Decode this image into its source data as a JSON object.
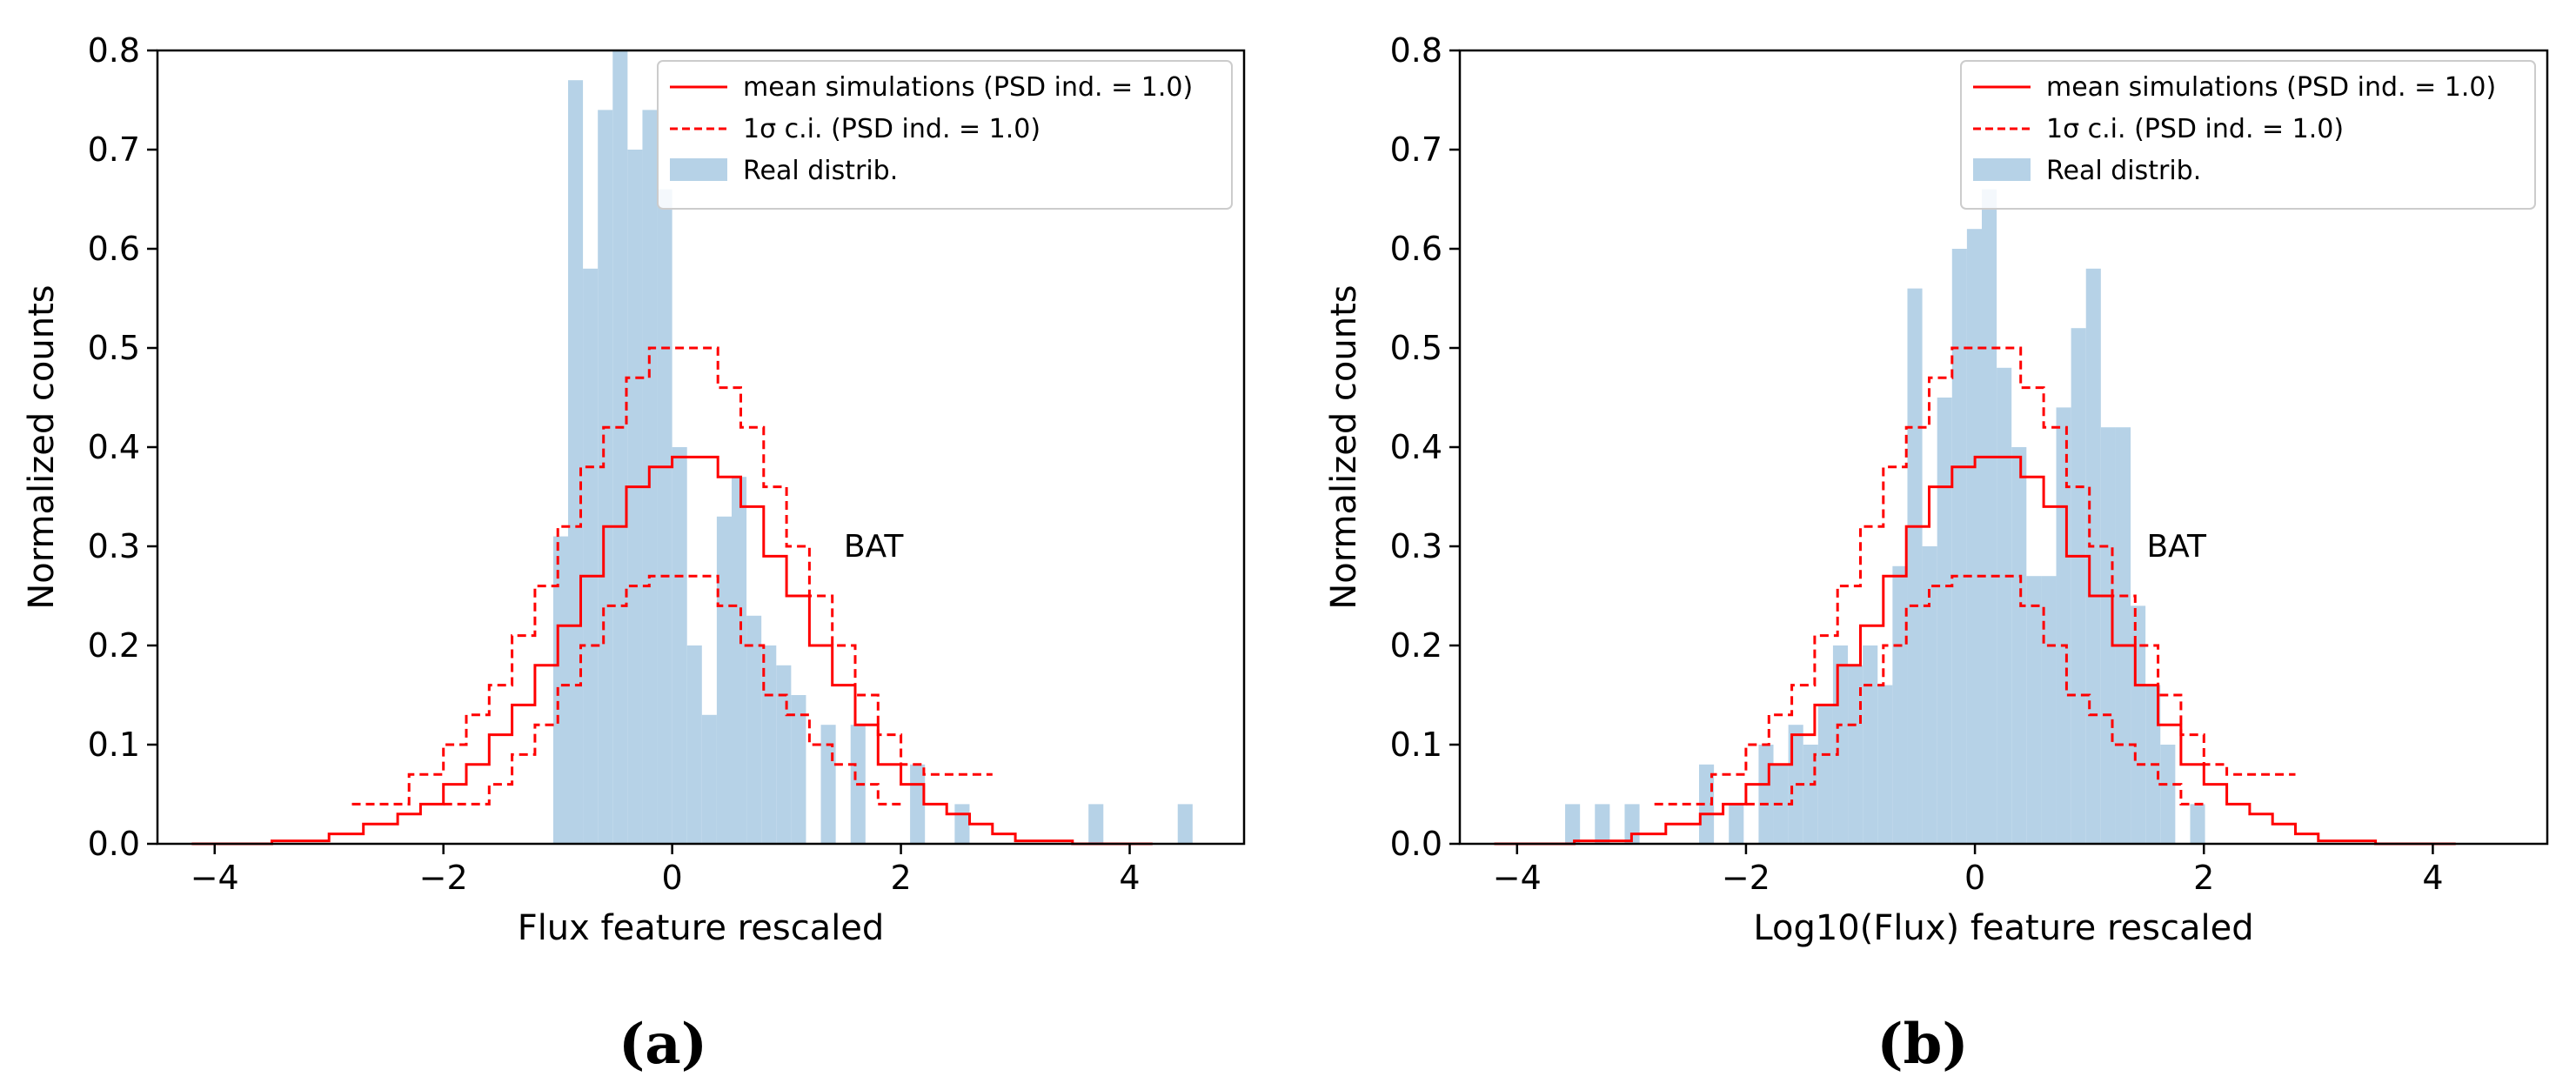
{
  "chart_data": [
    {
      "type": "bar",
      "panel_caption": "(a)",
      "title": "",
      "xlabel": "Flux feature rescaled",
      "ylabel": "Normalized counts",
      "annotation": "BAT",
      "xlim": [
        -4.5,
        5.0
      ],
      "ylim": [
        0.0,
        0.8
      ],
      "xticks": [
        -4,
        -2,
        0,
        2,
        4
      ],
      "xtick_labels": [
        "−4",
        "−2",
        "0",
        "2",
        "4"
      ],
      "yticks": [
        0.0,
        0.1,
        0.2,
        0.3,
        0.4,
        0.5,
        0.6,
        0.7,
        0.8
      ],
      "ytick_labels": [
        "0.0",
        "0.1",
        "0.2",
        "0.3",
        "0.4",
        "0.5",
        "0.6",
        "0.7",
        "0.8"
      ],
      "legend_position": "top-right",
      "legend": [
        {
          "label": "mean simulations (PSD ind. = 1.0)",
          "style": "solid-line",
          "color": "#ff0000"
        },
        {
          "label": "1σ c.i. (PSD ind. = 1.0)",
          "style": "dashed-line",
          "color": "#ff0000"
        },
        {
          "label": "Real distrib.",
          "style": "patch",
          "color": "#b6d2e7"
        }
      ],
      "series": [
        {
          "name": "Real distrib.",
          "kind": "histogram",
          "color": "#b6d2e7",
          "bin_width": 0.13,
          "x": [
            -1.04,
            -0.91,
            -0.78,
            -0.65,
            -0.52,
            -0.39,
            -0.26,
            -0.13,
            0.0,
            0.13,
            0.26,
            0.39,
            0.52,
            0.65,
            0.78,
            0.91,
            1.04,
            1.17,
            1.3,
            1.43,
            1.56,
            1.69,
            1.82,
            1.95,
            2.08,
            2.21,
            2.34,
            2.47,
            2.6,
            2.73,
            3.64,
            4.42
          ],
          "values": [
            0.31,
            0.77,
            0.58,
            0.74,
            0.8,
            0.7,
            0.74,
            0.66,
            0.4,
            0.2,
            0.13,
            0.33,
            0.37,
            0.23,
            0.2,
            0.18,
            0.15,
            0.0,
            0.12,
            0.0,
            0.12,
            0.0,
            0.0,
            0.0,
            0.08,
            0.0,
            0.0,
            0.04,
            0.0,
            0.0,
            0.04,
            0.04
          ]
        },
        {
          "name": "mean simulations (PSD ind. = 1.0)",
          "kind": "step",
          "color": "#ff0000",
          "edges": [
            -4.2,
            -3.5,
            -3.0,
            -2.7,
            -2.4,
            -2.2,
            -2.0,
            -1.8,
            -1.6,
            -1.4,
            -1.2,
            -1.0,
            -0.8,
            -0.6,
            -0.4,
            -0.2,
            0.0,
            0.2,
            0.4,
            0.6,
            0.8,
            1.0,
            1.2,
            1.4,
            1.6,
            1.8,
            2.0,
            2.2,
            2.4,
            2.6,
            2.8,
            3.0,
            3.5,
            4.2
          ],
          "values": [
            0.0,
            0.003,
            0.01,
            0.02,
            0.03,
            0.04,
            0.06,
            0.08,
            0.11,
            0.14,
            0.18,
            0.22,
            0.27,
            0.32,
            0.36,
            0.38,
            0.39,
            0.39,
            0.37,
            0.34,
            0.29,
            0.25,
            0.2,
            0.16,
            0.12,
            0.08,
            0.06,
            0.04,
            0.03,
            0.02,
            0.01,
            0.003,
            0.0
          ]
        },
        {
          "name": "1σ c.i. upper",
          "kind": "step-dashed",
          "color": "#ff0000",
          "edges": [
            -2.8,
            -2.3,
            -2.0,
            -1.8,
            -1.6,
            -1.4,
            -1.2,
            -1.0,
            -0.8,
            -0.6,
            -0.4,
            -0.2,
            0.0,
            0.2,
            0.4,
            0.6,
            0.8,
            1.0,
            1.2,
            1.4,
            1.6,
            1.8,
            2.0,
            2.2,
            2.4,
            2.6,
            2.8
          ],
          "values": [
            0.04,
            0.07,
            0.1,
            0.13,
            0.16,
            0.21,
            0.26,
            0.32,
            0.38,
            0.42,
            0.47,
            0.5,
            0.5,
            0.5,
            0.46,
            0.42,
            0.36,
            0.3,
            0.25,
            0.2,
            0.15,
            0.11,
            0.08,
            0.07,
            0.07,
            0.07
          ]
        },
        {
          "name": "1σ c.i. lower",
          "kind": "step-dashed",
          "color": "#ff0000",
          "edges": [
            -2.0,
            -1.6,
            -1.4,
            -1.2,
            -1.0,
            -0.8,
            -0.6,
            -0.4,
            -0.2,
            0.0,
            0.2,
            0.4,
            0.6,
            0.8,
            1.0,
            1.2,
            1.4,
            1.6,
            1.8,
            2.0
          ],
          "values": [
            0.04,
            0.06,
            0.09,
            0.12,
            0.16,
            0.2,
            0.24,
            0.26,
            0.27,
            0.27,
            0.27,
            0.24,
            0.2,
            0.15,
            0.13,
            0.1,
            0.08,
            0.06,
            0.04
          ]
        }
      ]
    },
    {
      "type": "bar",
      "panel_caption": "(b)",
      "title": "",
      "xlabel": "Log10(Flux) feature rescaled",
      "ylabel": "Normalized counts",
      "annotation": "BAT",
      "xlim": [
        -4.5,
        5.0
      ],
      "ylim": [
        0.0,
        0.8
      ],
      "xticks": [
        -4,
        -2,
        0,
        2,
        4
      ],
      "xtick_labels": [
        "−4",
        "−2",
        "0",
        "2",
        "4"
      ],
      "yticks": [
        0.0,
        0.1,
        0.2,
        0.3,
        0.4,
        0.5,
        0.6,
        0.7,
        0.8
      ],
      "ytick_labels": [
        "0.0",
        "0.1",
        "0.2",
        "0.3",
        "0.4",
        "0.5",
        "0.6",
        "0.7",
        "0.8"
      ],
      "legend_position": "top-right",
      "legend": [
        {
          "label": "mean simulations (PSD ind. = 1.0)",
          "style": "solid-line",
          "color": "#ff0000"
        },
        {
          "label": "1σ c.i. (PSD ind. = 1.0)",
          "style": "dashed-line",
          "color": "#ff0000"
        },
        {
          "label": "Real distrib.",
          "style": "patch",
          "color": "#b6d2e7"
        }
      ],
      "series": [
        {
          "name": "Real distrib.",
          "kind": "histogram",
          "color": "#b6d2e7",
          "bin_width": 0.13,
          "x": [
            -3.58,
            -3.32,
            -3.06,
            -2.41,
            -2.15,
            -1.89,
            -1.76,
            -1.63,
            -1.5,
            -1.37,
            -1.24,
            -1.11,
            -0.98,
            -0.85,
            -0.72,
            -0.59,
            -0.46,
            -0.33,
            -0.2,
            -0.07,
            0.06,
            0.19,
            0.32,
            0.45,
            0.58,
            0.71,
            0.84,
            0.97,
            1.1,
            1.23,
            1.36,
            1.49,
            1.62,
            1.88
          ],
          "values": [
            0.04,
            0.04,
            0.04,
            0.08,
            0.04,
            0.1,
            0.08,
            0.12,
            0.1,
            0.14,
            0.2,
            0.18,
            0.2,
            0.16,
            0.28,
            0.56,
            0.3,
            0.45,
            0.6,
            0.62,
            0.66,
            0.48,
            0.4,
            0.27,
            0.27,
            0.44,
            0.52,
            0.58,
            0.42,
            0.42,
            0.24,
            0.16,
            0.1,
            0.04
          ]
        },
        {
          "name": "mean simulations (PSD ind. = 1.0)",
          "kind": "step",
          "color": "#ff0000",
          "edges": [
            -4.2,
            -3.5,
            -3.0,
            -2.7,
            -2.4,
            -2.2,
            -2.0,
            -1.8,
            -1.6,
            -1.4,
            -1.2,
            -1.0,
            -0.8,
            -0.6,
            -0.4,
            -0.2,
            0.0,
            0.2,
            0.4,
            0.6,
            0.8,
            1.0,
            1.2,
            1.4,
            1.6,
            1.8,
            2.0,
            2.2,
            2.4,
            2.6,
            2.8,
            3.0,
            3.5,
            4.2
          ],
          "values": [
            0.0,
            0.003,
            0.01,
            0.02,
            0.03,
            0.04,
            0.06,
            0.08,
            0.11,
            0.14,
            0.18,
            0.22,
            0.27,
            0.32,
            0.36,
            0.38,
            0.39,
            0.39,
            0.37,
            0.34,
            0.29,
            0.25,
            0.2,
            0.16,
            0.12,
            0.08,
            0.06,
            0.04,
            0.03,
            0.02,
            0.01,
            0.003,
            0.0
          ]
        },
        {
          "name": "1σ c.i. upper",
          "kind": "step-dashed",
          "color": "#ff0000",
          "edges": [
            -2.8,
            -2.3,
            -2.0,
            -1.8,
            -1.6,
            -1.4,
            -1.2,
            -1.0,
            -0.8,
            -0.6,
            -0.4,
            -0.2,
            0.0,
            0.2,
            0.4,
            0.6,
            0.8,
            1.0,
            1.2,
            1.4,
            1.6,
            1.8,
            2.0,
            2.2,
            2.4,
            2.6,
            2.8
          ],
          "values": [
            0.04,
            0.07,
            0.1,
            0.13,
            0.16,
            0.21,
            0.26,
            0.32,
            0.38,
            0.42,
            0.47,
            0.5,
            0.5,
            0.5,
            0.46,
            0.42,
            0.36,
            0.3,
            0.25,
            0.2,
            0.15,
            0.11,
            0.08,
            0.07,
            0.07,
            0.07
          ]
        },
        {
          "name": "1σ c.i. lower",
          "kind": "step-dashed",
          "color": "#ff0000",
          "edges": [
            -2.0,
            -1.6,
            -1.4,
            -1.2,
            -1.0,
            -0.8,
            -0.6,
            -0.4,
            -0.2,
            0.0,
            0.2,
            0.4,
            0.6,
            0.8,
            1.0,
            1.2,
            1.4,
            1.6,
            1.8,
            2.0
          ],
          "values": [
            0.04,
            0.06,
            0.09,
            0.12,
            0.16,
            0.2,
            0.24,
            0.26,
            0.27,
            0.27,
            0.27,
            0.24,
            0.2,
            0.15,
            0.13,
            0.1,
            0.08,
            0.06,
            0.04
          ]
        }
      ]
    }
  ]
}
